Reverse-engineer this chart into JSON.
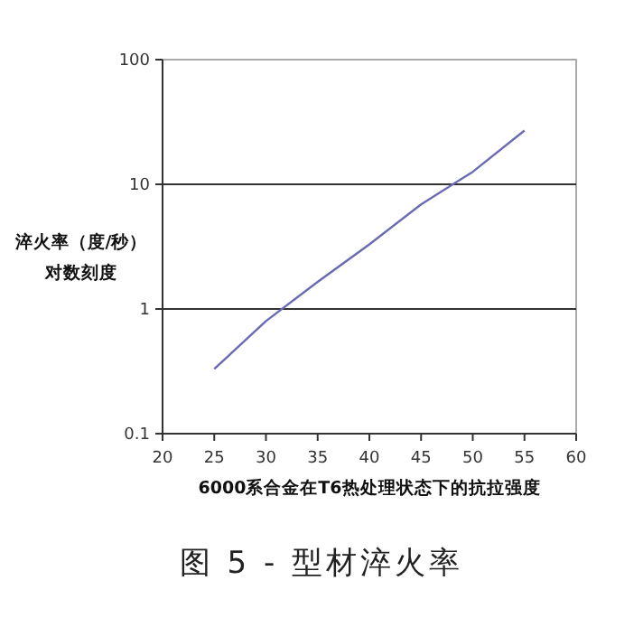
{
  "chart_data": {
    "type": "line",
    "xlabel": "6000系合金在T6热处理状态下的抗拉强度",
    "ylabel": "淬火率（度/秒）",
    "annotations": [
      "对数刻度",
      "图 5 - 型材淬火率"
    ],
    "x": [
      25,
      30,
      35,
      40,
      45,
      50,
      55
    ],
    "series": [
      {
        "color": "#6a6ab4",
        "values": [
          0.33,
          0.8,
          1.65,
          3.3,
          6.9,
          12.6,
          27
        ]
      }
    ],
    "xlim": [
      20,
      60
    ],
    "xticks": [
      20,
      25,
      30,
      35,
      40,
      45,
      50,
      55,
      60
    ],
    "ylim": [
      0.1,
      100
    ],
    "yticks": [
      0.1,
      1,
      10,
      100
    ],
    "log": "y",
    "grid": "y",
    "marker": "none",
    "line_style": "solid"
  }
}
